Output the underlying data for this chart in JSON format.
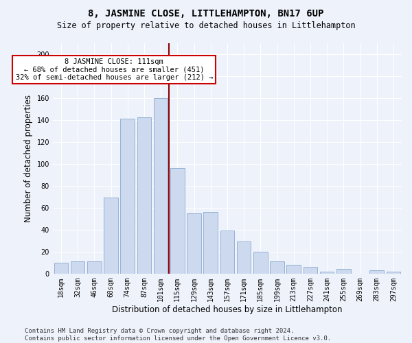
{
  "title": "8, JASMINE CLOSE, LITTLEHAMPTON, BN17 6UP",
  "subtitle": "Size of property relative to detached houses in Littlehampton",
  "xlabel": "Distribution of detached houses by size in Littlehampton",
  "ylabel": "Number of detached properties",
  "categories": [
    "18sqm",
    "32sqm",
    "46sqm",
    "60sqm",
    "74sqm",
    "87sqm",
    "101sqm",
    "115sqm",
    "129sqm",
    "143sqm",
    "157sqm",
    "171sqm",
    "185sqm",
    "199sqm",
    "213sqm",
    "227sqm",
    "241sqm",
    "255sqm",
    "269sqm",
    "283sqm",
    "297sqm"
  ],
  "values": [
    10,
    11,
    11,
    69,
    141,
    142,
    160,
    96,
    55,
    56,
    39,
    29,
    20,
    11,
    8,
    6,
    2,
    4,
    0,
    3,
    2
  ],
  "bar_color": "#cdd9ee",
  "bar_edge_color": "#8aaacf",
  "vline_color": "#8b0000",
  "annotation_text": "8 JASMINE CLOSE: 111sqm\n← 68% of detached houses are smaller (451)\n32% of semi-detached houses are larger (212) →",
  "annotation_box_facecolor": "#ffffff",
  "annotation_box_edge": "#cc0000",
  "ylim": [
    0,
    210
  ],
  "yticks": [
    0,
    20,
    40,
    60,
    80,
    100,
    120,
    140,
    160,
    180,
    200
  ],
  "footer": "Contains HM Land Registry data © Crown copyright and database right 2024.\nContains public sector information licensed under the Open Government Licence v3.0.",
  "bg_color": "#eef2fb",
  "grid_color": "#ffffff",
  "title_fontsize": 10,
  "subtitle_fontsize": 8.5,
  "axis_label_fontsize": 8.5,
  "tick_fontsize": 7,
  "annotation_fontsize": 7.5,
  "footer_fontsize": 6.5
}
